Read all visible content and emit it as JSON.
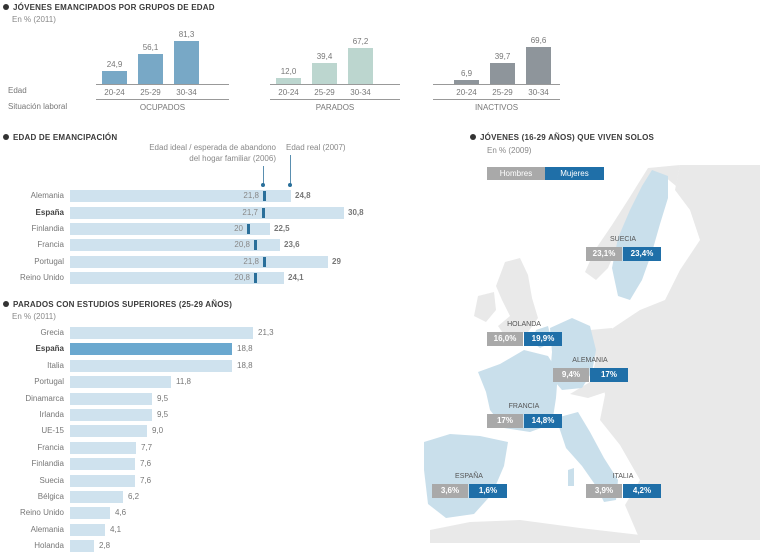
{
  "colors": {
    "ocupados": "#78a8c6",
    "parados": "#bcd6cf",
    "inactivos": "#8e959b",
    "light_bar": "#cfe2ee",
    "highlight_bar": "#6aa8cf",
    "ideal_marker": "#2a6f9a",
    "hombres": "#a9a9a9",
    "mujeres": "#1f6fa8",
    "map_land": "#e9e9e9",
    "map_highlight": "#c9dfeb"
  },
  "chart_data": [
    {
      "type": "bar",
      "title": "JÓVENES EMANCIPADOS POR GRUPOS DE EDAD",
      "subtitle": "En % (2011)",
      "row_labels": {
        "age": "Edad",
        "status": "Situación laboral"
      },
      "categories": [
        "20-24",
        "25-29",
        "30-34"
      ],
      "series": [
        {
          "name": "OCUPADOS",
          "values": [
            24.9,
            56.1,
            81.3
          ],
          "labels": [
            "24,9",
            "56,1",
            "81,3"
          ]
        },
        {
          "name": "PARADOS",
          "values": [
            12.0,
            39.4,
            67.2
          ],
          "labels": [
            "12,0",
            "39,4",
            "67,2"
          ]
        },
        {
          "name": "INACTIVOS",
          "values": [
            6.9,
            39.7,
            69.6
          ],
          "labels": [
            "6,9",
            "39,7",
            "69,6"
          ]
        }
      ],
      "ylim": [
        0,
        100
      ]
    },
    {
      "type": "bar",
      "orientation": "horizontal",
      "title": "EDAD DE EMANCIPACIÓN",
      "annotations": {
        "ideal_line1": "Edad ideal / esperada de abandono",
        "ideal_line2": "del hogar familiar (2006)",
        "real": "Edad real (2007)"
      },
      "categories": [
        "Alemania",
        "España",
        "Finlandia",
        "Francia",
        "Portugal",
        "Reino Unido"
      ],
      "highlight": "España",
      "series": [
        {
          "name": "Edad ideal / esperada (2006)",
          "values": [
            21.8,
            21.7,
            20,
            20.8,
            21.8,
            20.8
          ],
          "labels": [
            "21,8",
            "21,7",
            "20",
            "20,8",
            "21,8",
            "20,8"
          ]
        },
        {
          "name": "Edad real (2007)",
          "values": [
            24.8,
            30.8,
            22.5,
            23.6,
            29,
            24.1
          ],
          "labels": [
            "24,8",
            "30,8",
            "22,5",
            "23,6",
            "29",
            "24,1"
          ]
        }
      ]
    },
    {
      "type": "bar",
      "orientation": "horizontal",
      "title": "PARADOS CON ESTUDIOS SUPERIORES (25-29 AÑOS)",
      "subtitle": "En % (2011)",
      "categories": [
        "Grecia",
        "España",
        "Italia",
        "Portugal",
        "Dinamarca",
        "Irlanda",
        "UE-15",
        "Francia",
        "Finlandia",
        "Suecia",
        "Bélgica",
        "Reino Unido",
        "Alemania",
        "Holanda"
      ],
      "highlight": "España",
      "values": [
        21.3,
        18.8,
        18.8,
        11.8,
        9.5,
        9.5,
        9.0,
        7.7,
        7.6,
        7.6,
        6.2,
        4.6,
        4.1,
        2.8
      ],
      "labels": [
        "21,3",
        "18,8",
        "18,8",
        "11,8",
        "9,5",
        "9,5",
        "9,0",
        "7,7",
        "7,6",
        "7,6",
        "6,2",
        "4,6",
        "4,1",
        "2,8"
      ]
    },
    {
      "type": "table",
      "title": "JÓVENES (16-29 AÑOS) QUE VIVEN SOLOS",
      "subtitle": "En % (2009)",
      "legend": [
        "Hombres",
        "Mujeres"
      ],
      "rows": [
        {
          "country": "SUECIA",
          "hombres": "23,1%",
          "mujeres": "23,4%"
        },
        {
          "country": "HOLANDA",
          "hombres": "16,0%",
          "mujeres": "19,9%"
        },
        {
          "country": "ALEMANIA",
          "hombres": "9,4%",
          "mujeres": "17%"
        },
        {
          "country": "FRANCIA",
          "hombres": "17%",
          "mujeres": "14,8%"
        },
        {
          "country": "ESPAÑA",
          "hombres": "3,6%",
          "mujeres": "1,6%"
        },
        {
          "country": "ITALIA",
          "hombres": "3,9%",
          "mujeres": "4,2%"
        }
      ]
    }
  ]
}
